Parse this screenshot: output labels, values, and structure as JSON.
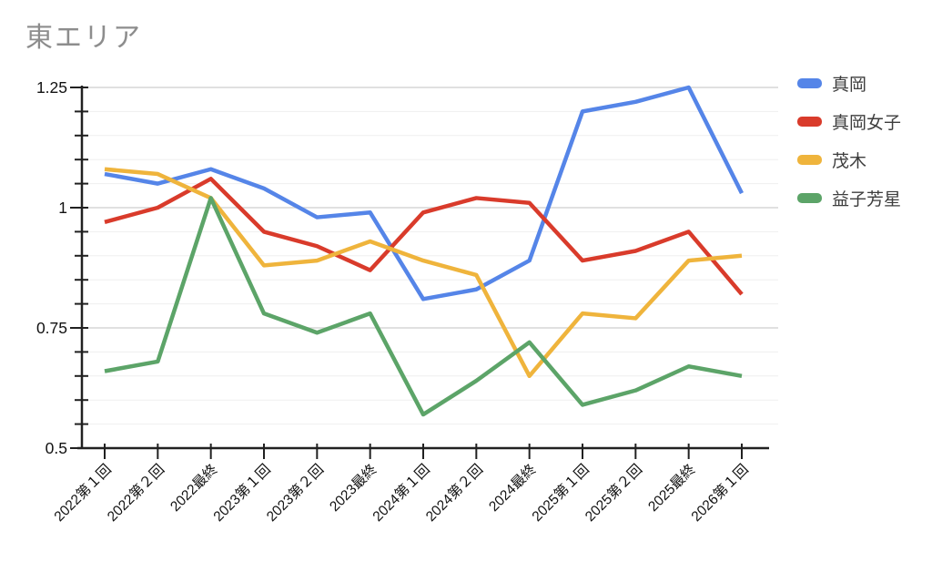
{
  "chart_data": {
    "type": "line",
    "title": "東エリア",
    "categories": [
      "2022第１回",
      "2022第２回",
      "2022最終",
      "2023第１回",
      "2023第２回",
      "2023最終",
      "2024第１回",
      "2024第２回",
      "2024最終",
      "2025第１回",
      "2025第２回",
      "2025最終",
      "2026第１回"
    ],
    "series": [
      {
        "name": "真岡",
        "color": "#5585e8",
        "values": [
          1.07,
          1.05,
          1.08,
          1.04,
          0.98,
          0.99,
          0.81,
          0.83,
          0.89,
          1.2,
          1.22,
          1.25,
          1.03
        ]
      },
      {
        "name": "真岡女子",
        "color": "#d93b2b",
        "values": [
          0.97,
          1.0,
          1.06,
          0.95,
          0.92,
          0.87,
          0.99,
          1.02,
          1.01,
          0.89,
          0.91,
          0.95,
          0.82
        ]
      },
      {
        "name": "茂木",
        "color": "#efb43c",
        "values": [
          1.08,
          1.07,
          1.02,
          0.88,
          0.89,
          0.93,
          0.89,
          0.86,
          0.65,
          0.78,
          0.77,
          0.89,
          0.9
        ]
      },
      {
        "name": "益子芳星",
        "color": "#5ca468",
        "values": [
          0.66,
          0.68,
          1.02,
          0.78,
          0.74,
          0.78,
          0.57,
          0.64,
          0.72,
          0.59,
          0.62,
          0.67,
          0.65
        ]
      }
    ],
    "ylim": [
      0.5,
      1.25
    ],
    "yticks": [
      0.5,
      0.75,
      1,
      1.25
    ],
    "ytick_labels": [
      "0.5",
      "0.75",
      "1",
      "1.25"
    ],
    "minor_tick_step": 0.05,
    "xlabel": "",
    "ylabel": "",
    "grid": "horizontal-only",
    "legend_position": "right",
    "colors": {
      "title_text": "#8d8d8d",
      "axis": "#212121",
      "tick_label": "#111111",
      "major_gridline": "#d6d6d6",
      "minor_gridline": "#efefef",
      "background": "#ffffff"
    }
  }
}
